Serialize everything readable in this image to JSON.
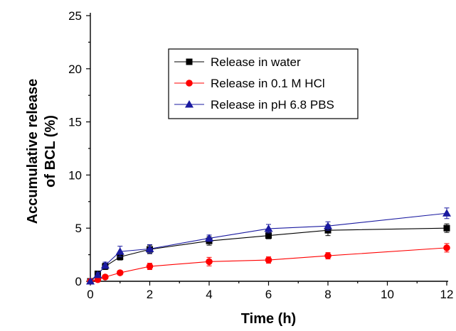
{
  "chart_data": {
    "type": "line",
    "title": "",
    "xlabel": "Time (h)",
    "ylabel_line1": "Accumulative release",
    "ylabel_line2": "of BCL (%)",
    "xlim": [
      0,
      12
    ],
    "ylim": [
      0,
      25
    ],
    "x_ticks": [
      "0",
      "2",
      "4",
      "6",
      "8",
      "10",
      "12"
    ],
    "y_ticks": [
      "0",
      "5",
      "10",
      "15",
      "20",
      "25"
    ],
    "grid": false,
    "legend_position": "top-center",
    "x": [
      0,
      0.25,
      0.5,
      1,
      2,
      4,
      6,
      8,
      12
    ],
    "series": [
      {
        "name": "Release in water",
        "color": "#000000",
        "marker": "square",
        "values": [
          0,
          0.7,
          1.4,
          2.3,
          3.0,
          3.8,
          4.3,
          4.8,
          5.0
        ],
        "errors": [
          0,
          0.2,
          0.3,
          0.3,
          0.4,
          0.4,
          0.3,
          0.5,
          0.4
        ]
      },
      {
        "name": "Release in 0.1 M HCl",
        "color": "#ff0000",
        "marker": "circle",
        "values": [
          0,
          0.15,
          0.4,
          0.8,
          1.4,
          1.85,
          2.0,
          2.4,
          3.15
        ],
        "errors": [
          0,
          0.1,
          0.1,
          0.2,
          0.3,
          0.4,
          0.3,
          0.3,
          0.4
        ]
      },
      {
        "name": "Release in pH 6.8 PBS",
        "color": "#1a1aa0",
        "marker": "triangle",
        "values": [
          0,
          0.6,
          1.5,
          2.8,
          3.05,
          4.05,
          4.95,
          5.2,
          6.4
        ],
        "errors": [
          0,
          0.2,
          0.3,
          0.5,
          0.4,
          0.3,
          0.4,
          0.4,
          0.5
        ]
      }
    ]
  }
}
